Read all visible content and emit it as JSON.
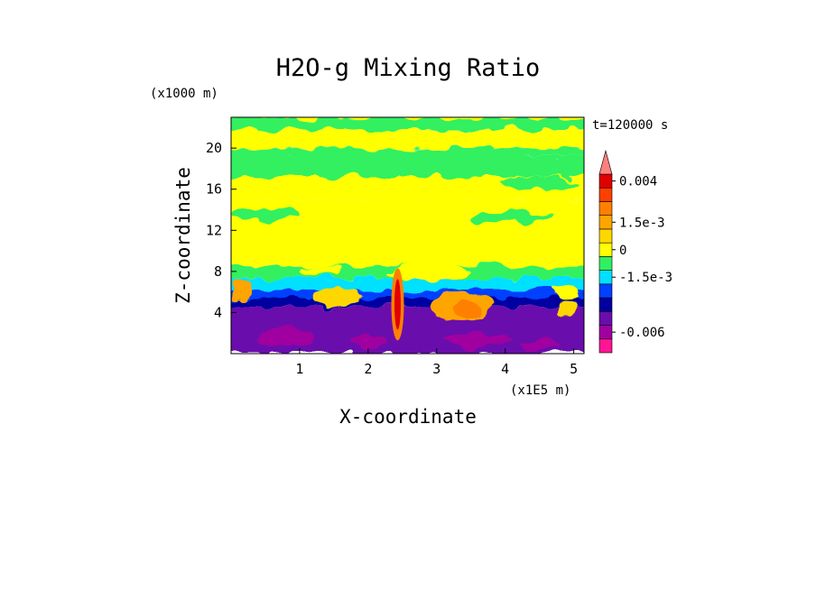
{
  "chart_data": {
    "type": "heatmap",
    "title": "H2O-g Mixing Ratio",
    "time_label": "t=120000 s",
    "xlabel": "X-coordinate",
    "ylabel": "Z-coordinate",
    "x_unit": "(x1E5 m)",
    "y_unit": "(x1000 m)",
    "xlim": [
      0,
      5.15
    ],
    "ylim": [
      0,
      23
    ],
    "x_ticks": [
      {
        "value": 1,
        "label": "1"
      },
      {
        "value": 2,
        "label": "2"
      },
      {
        "value": 3,
        "label": "3"
      },
      {
        "value": 4,
        "label": "4"
      },
      {
        "value": 5,
        "label": "5"
      }
    ],
    "y_ticks": [
      {
        "value": 4,
        "label": "4"
      },
      {
        "value": 8,
        "label": "8"
      },
      {
        "value": 12,
        "label": "12"
      },
      {
        "value": 16,
        "label": "16"
      },
      {
        "value": 20,
        "label": "20"
      }
    ],
    "colorbar": {
      "levels": [
        {
          "color": "#ff1493"
        },
        {
          "color": "#a000a0"
        },
        {
          "color": "#6a0dad"
        },
        {
          "color": "#0000a0"
        },
        {
          "color": "#0040ff"
        },
        {
          "color": "#00e0ff"
        },
        {
          "color": "#30f060"
        },
        {
          "color": "#ffff00"
        },
        {
          "color": "#ffd700"
        },
        {
          "color": "#ffa500"
        },
        {
          "color": "#ff8000"
        },
        {
          "color": "#ff4000"
        },
        {
          "color": "#e00000"
        },
        {
          "color": "#ff7f7f"
        }
      ],
      "labels": [
        {
          "text": "0.004",
          "level": 12.5
        },
        {
          "text": "1.5e-3",
          "level": 9.5
        },
        {
          "text": "0",
          "level": 7.5
        },
        {
          "text": "-1.5e-3",
          "level": 5.5
        },
        {
          "text": "-0.006",
          "level": 1.5
        }
      ]
    }
  }
}
